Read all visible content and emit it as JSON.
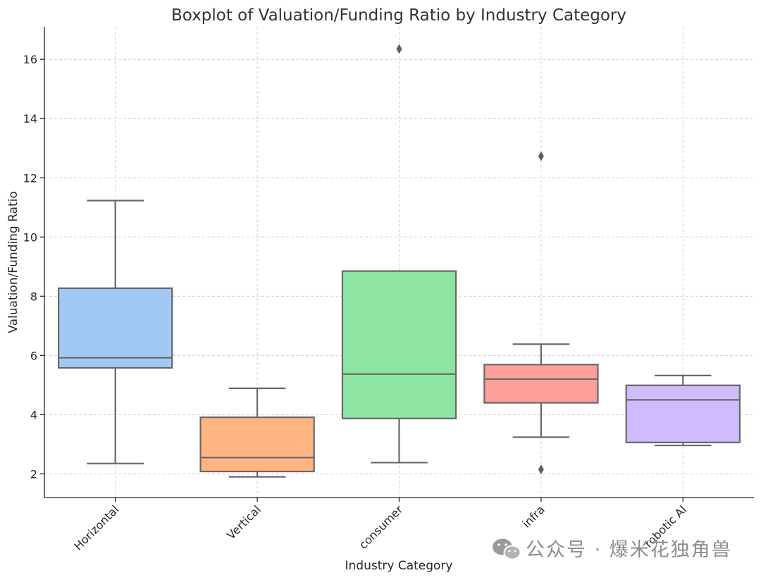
{
  "chart_data": {
    "type": "boxplot",
    "title": "Boxplot of Valuation/Funding Ratio by Industry Category",
    "xlabel": "Industry Category",
    "ylabel": "Valuation/Funding Ratio",
    "ylim": [
      1.2,
      17.1
    ],
    "yticks": [
      2,
      4,
      6,
      8,
      10,
      12,
      14,
      16
    ],
    "grid": true,
    "categories": [
      "Horizontal",
      "Vertical",
      "consumer",
      "infra",
      "robotic AI"
    ],
    "colors": [
      "#a1c9f4",
      "#ffb482",
      "#8de5a1",
      "#ff9f9b",
      "#d0bbff"
    ],
    "boxes": [
      {
        "category": "Horizontal",
        "whisker_low": 2.35,
        "q1": 5.58,
        "median": 5.92,
        "q3": 8.27,
        "whisker_high": 11.23,
        "fliers": []
      },
      {
        "category": "Vertical",
        "whisker_low": 1.9,
        "q1": 2.08,
        "median": 2.55,
        "q3": 3.91,
        "whisker_high": 4.89,
        "fliers": []
      },
      {
        "category": "consumer",
        "whisker_low": 2.38,
        "q1": 3.87,
        "median": 5.37,
        "q3": 8.85,
        "whisker_high": 8.85,
        "fliers": [
          16.35
        ]
      },
      {
        "category": "infra",
        "whisker_low": 3.24,
        "q1": 4.4,
        "median": 5.2,
        "q3": 5.69,
        "whisker_high": 6.38,
        "fliers": [
          12.73,
          2.15
        ]
      },
      {
        "category": "robotic AI",
        "whisker_low": 2.96,
        "q1": 3.06,
        "median": 4.5,
        "q3": 4.99,
        "whisker_high": 5.32,
        "fliers": []
      }
    ]
  },
  "watermark": {
    "icon": "wechat-icon",
    "text": "公众号 · 爆米花独角兽"
  }
}
